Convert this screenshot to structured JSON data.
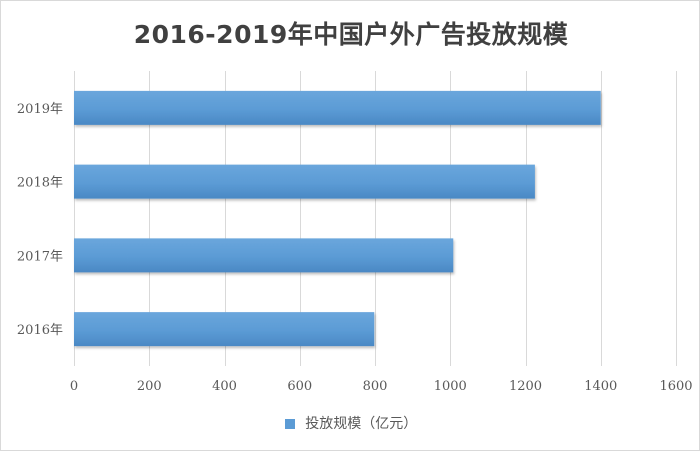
{
  "chart_data": {
    "type": "bar",
    "orientation": "horizontal",
    "title": "2016-2019年中国户外广告投放规模",
    "categories": [
      "2019年",
      "2018年",
      "2017年",
      "2016年"
    ],
    "series": [
      {
        "name": "投放规模（亿元）",
        "values": [
          1400,
          1225,
          1008,
          798
        ]
      }
    ],
    "xlim": [
      0,
      1600
    ],
    "xticks": [
      0,
      200,
      400,
      600,
      800,
      1000,
      1200,
      1400,
      1600
    ],
    "grid": "vertical",
    "legend_position": "bottom",
    "bar_color": "#5b9bd5",
    "grid_color": "#d9d9d9"
  }
}
